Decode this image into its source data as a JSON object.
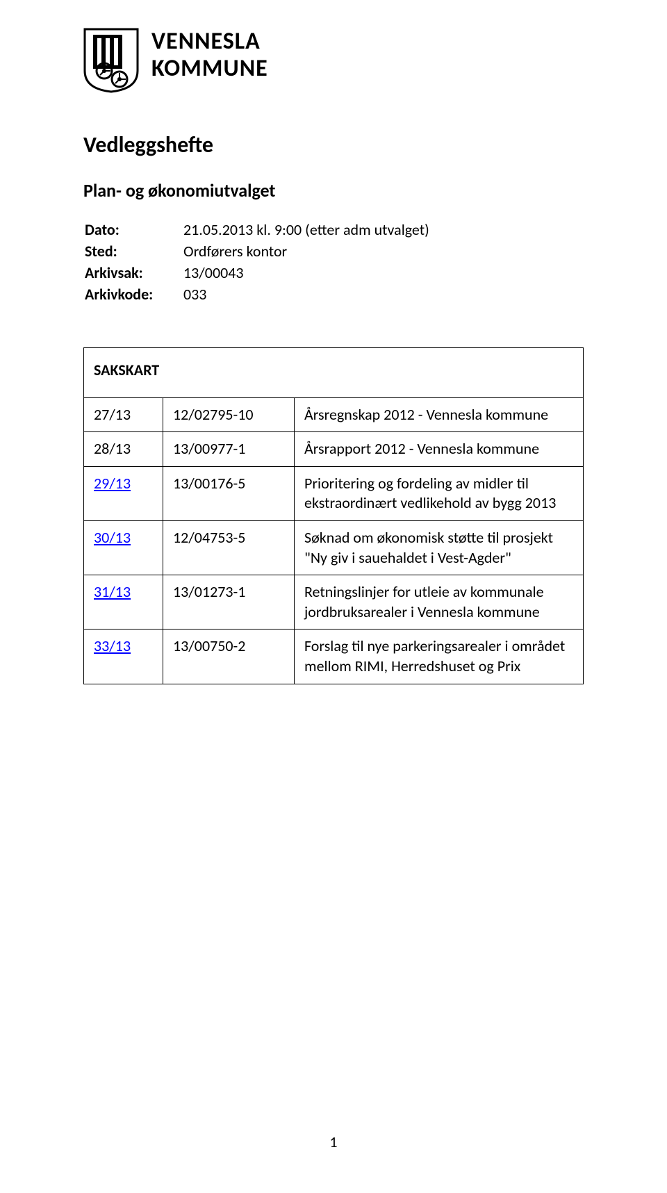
{
  "org": {
    "name_line1": "VENNESLA",
    "name_line2": "KOMMUNE"
  },
  "doc_title": "Vedleggshefte",
  "subtitle": "Plan- og økonomiutvalget",
  "meta": {
    "dato_label": "Dato:",
    "dato_value": "21.05.2013 kl. 9:00 (etter adm utvalget)",
    "sted_label": "Sted:",
    "sted_value": "Ordførers kontor",
    "arkivsak_label": "Arkivsak:",
    "arkivsak_value": "13/00043",
    "arkivkode_label": "Arkivkode:",
    "arkivkode_value": "033"
  },
  "sakskart": {
    "title": "SAKSKART",
    "rows": [
      {
        "num": "27/13",
        "ref": "12/02795-10",
        "desc": "Årsregnskap 2012 - Vennesla kommune",
        "link": false
      },
      {
        "num": "28/13",
        "ref": "13/00977-1",
        "desc": "Årsrapport 2012 - Vennesla kommune",
        "link": false
      },
      {
        "num": "29/13",
        "ref": "13/00176-5",
        "desc": "Prioritering og fordeling av midler til ekstraordinært vedlikehold av bygg 2013",
        "link": true
      },
      {
        "num": "30/13",
        "ref": "12/04753-5",
        "desc": "Søknad om økonomisk støtte til prosjekt \"Ny giv i sauehaldet i Vest-Agder\"",
        "link": true
      },
      {
        "num": "31/13",
        "ref": "13/01273-1",
        "desc": "Retningslinjer for utleie av kommunale jordbruksarealer i Vennesla kommune",
        "link": true
      },
      {
        "num": "33/13",
        "ref": "13/00750-2",
        "desc": "Forslag til nye parkeringsarealer i området mellom RIMI, Herredshuset og Prix",
        "link": true
      }
    ]
  },
  "page_number": "1",
  "colors": {
    "text": "#000000",
    "link": "#0000ff",
    "border": "#000000",
    "background": "#ffffff",
    "logo_scroll": "#ffffff",
    "logo_stroke": "#000000"
  }
}
